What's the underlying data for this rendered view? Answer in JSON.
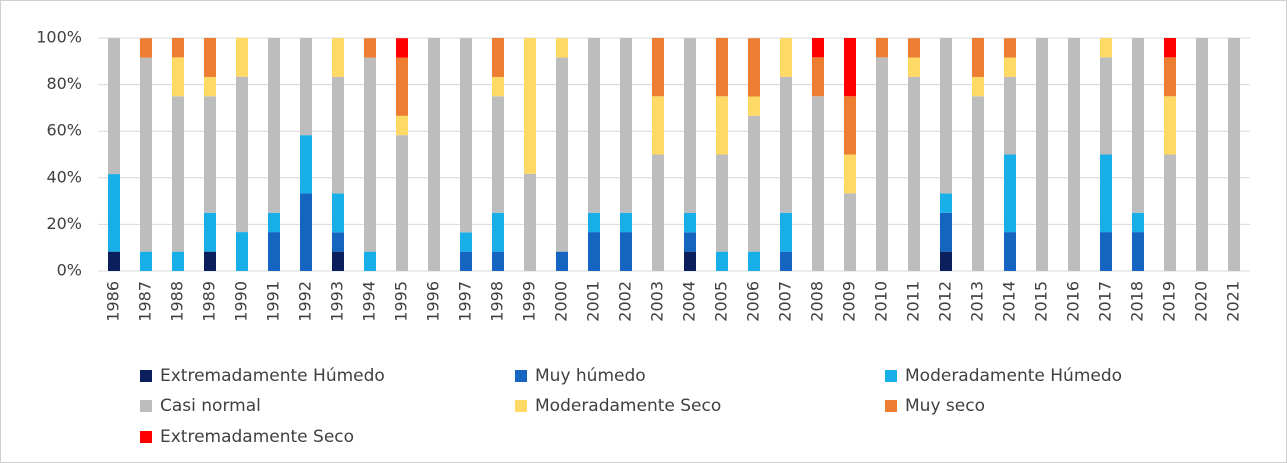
{
  "chart_data": {
    "type": "stacked_bar",
    "categories": [
      "1986",
      "1987",
      "1988",
      "1989",
      "1990",
      "1991",
      "1992",
      "1993",
      "1994",
      "1995",
      "1996",
      "1997",
      "1998",
      "1999",
      "2000",
      "2001",
      "2002",
      "2003",
      "2004",
      "2005",
      "2006",
      "2007",
      "2008",
      "2009",
      "2010",
      "2011",
      "2012",
      "2013",
      "2014",
      "2015",
      "2016",
      "2017",
      "2018",
      "2019",
      "2020",
      "2021"
    ],
    "series": [
      {
        "name": "Extremadamente Húmedo",
        "color": "#0a1f5c",
        "values": [
          8.3,
          0,
          0,
          8.3,
          0,
          0,
          0,
          8.3,
          0,
          0,
          0,
          0,
          0,
          0,
          0,
          0,
          0,
          0,
          8.3,
          0,
          0,
          0,
          0,
          0,
          0,
          0,
          8.3,
          0,
          0,
          0,
          0,
          0,
          0,
          0,
          0,
          0
        ]
      },
      {
        "name": "Muy húmedo",
        "color": "#1565c0",
        "values": [
          0,
          0,
          0,
          0,
          0,
          16.7,
          33.3,
          8.3,
          0,
          0,
          0,
          8.3,
          8.3,
          0,
          8.3,
          16.7,
          16.7,
          0,
          8.3,
          0,
          0,
          8.3,
          0,
          0,
          0,
          0,
          16.7,
          0,
          16.7,
          0,
          0,
          16.7,
          16.7,
          0,
          0,
          0
        ]
      },
      {
        "name": "Moderadamente Húmedo",
        "color": "#18aee8",
        "values": [
          33.3,
          8.3,
          8.3,
          16.7,
          16.7,
          8.3,
          25,
          16.7,
          8.3,
          0,
          0,
          8.3,
          16.7,
          0,
          0,
          8.3,
          8.3,
          0,
          8.3,
          8.3,
          8.3,
          16.7,
          0,
          0,
          0,
          0,
          8.3,
          0,
          33.3,
          0,
          0,
          33.3,
          8.3,
          0,
          0,
          0
        ]
      },
      {
        "name": "Casi normal",
        "color": "#bdbdbd",
        "values": [
          58.3,
          83.3,
          66.7,
          50,
          66.7,
          75,
          41.7,
          50,
          83.3,
          58.3,
          100,
          83.3,
          50,
          41.7,
          83.3,
          75,
          75,
          50,
          75,
          41.7,
          58.3,
          58.3,
          75,
          33.3,
          91.7,
          83.3,
          66.7,
          75,
          33.3,
          100,
          100,
          41.7,
          75,
          50,
          100,
          100
        ]
      },
      {
        "name": "Moderadamente Seco",
        "color": "#ffd966",
        "values": [
          0,
          0,
          16.7,
          8.3,
          16.7,
          0,
          0,
          16.7,
          0,
          8.3,
          0,
          0,
          8.3,
          58.3,
          8.3,
          0,
          0,
          25,
          0,
          25,
          8.3,
          16.7,
          0,
          16.7,
          0,
          8.3,
          0,
          8.3,
          8.3,
          0,
          0,
          8.3,
          0,
          25,
          0,
          0
        ]
      },
      {
        "name": "Muy seco",
        "color": "#ed7d31",
        "values": [
          0,
          8.3,
          8.3,
          16.7,
          0,
          0,
          0,
          0,
          8.3,
          25,
          0,
          0,
          16.7,
          0,
          0,
          0,
          0,
          25,
          0,
          25,
          25,
          0,
          16.7,
          25,
          8.3,
          8.3,
          0,
          16.7,
          8.3,
          0,
          0,
          0,
          0,
          16.7,
          0,
          0
        ]
      },
      {
        "name": "Extremadamente Seco",
        "color": "#ff0000",
        "values": [
          0,
          0,
          0,
          0,
          0,
          0,
          0,
          0,
          0,
          8.3,
          0,
          0,
          0,
          0,
          0,
          0,
          0,
          0,
          0,
          0,
          0,
          0,
          8.3,
          25,
          0,
          0,
          0,
          0,
          0,
          0,
          0,
          0,
          0,
          8.3,
          0,
          0
        ]
      }
    ],
    "ylim": [
      0,
      100
    ],
    "yticks": [
      {
        "value": 0,
        "label": "0%"
      },
      {
        "value": 20,
        "label": "20%"
      },
      {
        "value": 40,
        "label": "40%"
      },
      {
        "value": 60,
        "label": "60%"
      },
      {
        "value": 80,
        "label": "80%"
      },
      {
        "value": 100,
        "label": "100%"
      }
    ],
    "grid": true
  }
}
